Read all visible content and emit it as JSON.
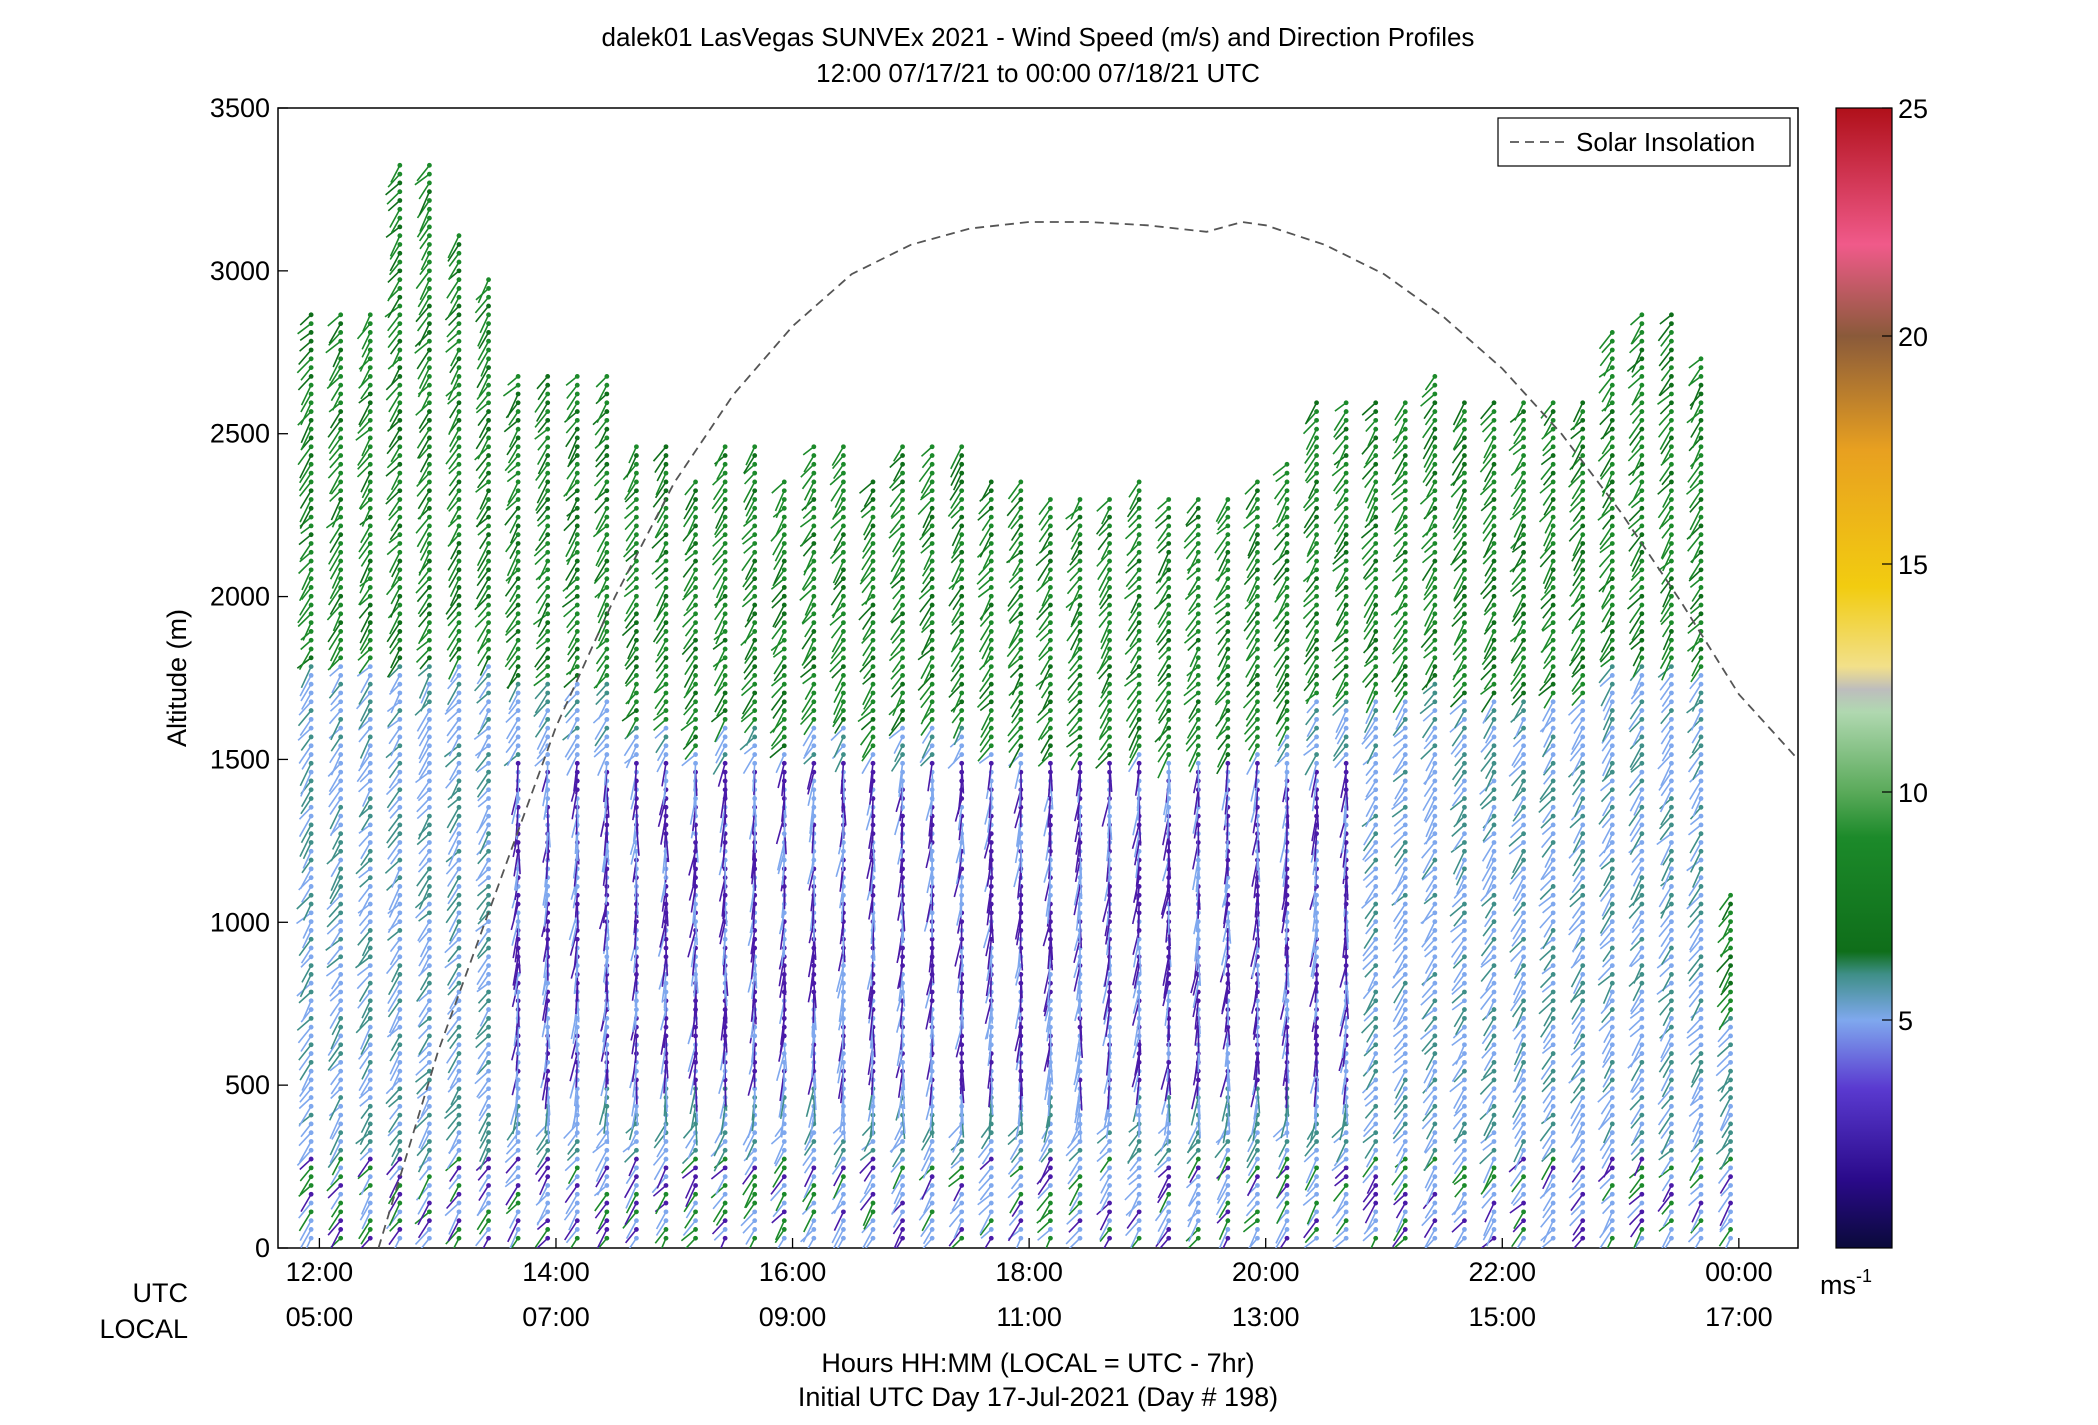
{
  "chart_data": {
    "type": "wind-barb-profile",
    "title": "dalek01 LasVegas SUNVEx 2021 - Wind Speed (m/s) and Direction Profiles",
    "subtitle": "12:00 07/17/21 to 00:00 07/18/21  UTC",
    "ylabel": "Altitude (m)",
    "ylim": [
      0,
      3500
    ],
    "yticks": [
      0,
      500,
      1000,
      1500,
      2000,
      2500,
      3000,
      3500
    ],
    "xlim_hours": [
      11.65,
      24.5
    ],
    "xticks": [
      {
        "hour": 12,
        "utc": "12:00",
        "local": "05:00"
      },
      {
        "hour": 14,
        "utc": "14:00",
        "local": "07:00"
      },
      {
        "hour": 16,
        "utc": "16:00",
        "local": "09:00"
      },
      {
        "hour": 18,
        "utc": "18:00",
        "local": "11:00"
      },
      {
        "hour": 20,
        "utc": "20:00",
        "local": "13:00"
      },
      {
        "hour": 22,
        "utc": "22:00",
        "local": "15:00"
      },
      {
        "hour": 24,
        "utc": "00:00",
        "local": "17:00"
      }
    ],
    "row_labels": {
      "utc": "UTC",
      "local": "LOCAL"
    },
    "xlabel": "Hours HH:MM  (LOCAL = UTC - 7hr)",
    "xlabel2": "Initial UTC Day 17-Jul-2021 (Day # 198)",
    "legend": {
      "label": "Solar Insolation",
      "position": "top-right"
    },
    "colorbar": {
      "min": 0,
      "max": 25,
      "ticks": [
        5,
        10,
        15,
        20,
        25
      ],
      "unit_base": "ms",
      "unit_exp": "-1"
    },
    "colors": {
      "purple": "#4a1aa8",
      "blue": "#7fa8ee",
      "teal": "#3f8f88",
      "green": "#1c8a2a",
      "dark_green": "#0f6e1a",
      "solar_line": "#555555"
    },
    "solar_insolation": [
      [
        12.5,
        0
      ],
      [
        13.0,
        600
      ],
      [
        13.5,
        1100
      ],
      [
        14.0,
        1600
      ],
      [
        14.5,
        2000
      ],
      [
        15.0,
        2350
      ],
      [
        15.5,
        2620
      ],
      [
        16.0,
        2830
      ],
      [
        16.5,
        2990
      ],
      [
        17.0,
        3080
      ],
      [
        17.5,
        3130
      ],
      [
        18.0,
        3150
      ],
      [
        18.5,
        3150
      ],
      [
        19.0,
        3140
      ],
      [
        19.5,
        3120
      ],
      [
        19.8,
        3150
      ],
      [
        20.0,
        3140
      ],
      [
        20.5,
        3080
      ],
      [
        21.0,
        2990
      ],
      [
        21.5,
        2860
      ],
      [
        22.0,
        2700
      ],
      [
        22.5,
        2500
      ],
      [
        23.0,
        2260
      ],
      [
        23.5,
        1990
      ],
      [
        24.0,
        1700
      ],
      [
        24.5,
        1500
      ]
    ],
    "profiles": [
      {
        "hour": 11.93,
        "top": 2880,
        "band": "green"
      },
      {
        "hour": 12.18,
        "top": 2880,
        "band": "green"
      },
      {
        "hour": 12.43,
        "top": 2880,
        "band": "green"
      },
      {
        "hour": 12.68,
        "top": 3330,
        "band": "green"
      },
      {
        "hour": 12.93,
        "top": 3330,
        "band": "green"
      },
      {
        "hour": 13.18,
        "top": 3120,
        "band": "green"
      },
      {
        "hour": 13.43,
        "top": 2980,
        "band": "green"
      },
      {
        "hour": 13.68,
        "top": 2680,
        "band": "green"
      },
      {
        "hour": 13.93,
        "top": 2680,
        "band": "green"
      },
      {
        "hour": 14.18,
        "top": 2680,
        "band": "green"
      },
      {
        "hour": 14.43,
        "top": 2680,
        "band": "green"
      },
      {
        "hour": 14.68,
        "top": 2460,
        "band": "green"
      },
      {
        "hour": 14.93,
        "top": 2460,
        "band": "green"
      },
      {
        "hour": 15.18,
        "top": 2370,
        "band": "green"
      },
      {
        "hour": 15.43,
        "top": 2460,
        "band": "green"
      },
      {
        "hour": 15.68,
        "top": 2460,
        "band": "green"
      },
      {
        "hour": 15.93,
        "top": 2370,
        "band": "green"
      },
      {
        "hour": 16.18,
        "top": 2460,
        "band": "green"
      },
      {
        "hour": 16.43,
        "top": 2460,
        "band": "green"
      },
      {
        "hour": 16.68,
        "top": 2370,
        "band": "green"
      },
      {
        "hour": 16.93,
        "top": 2460,
        "band": "green"
      },
      {
        "hour": 17.18,
        "top": 2460,
        "band": "green"
      },
      {
        "hour": 17.43,
        "top": 2460,
        "band": "green"
      },
      {
        "hour": 17.68,
        "top": 2370,
        "band": "green"
      },
      {
        "hour": 17.93,
        "top": 2370,
        "band": "green"
      },
      {
        "hour": 18.18,
        "top": 2320,
        "band": "green"
      },
      {
        "hour": 18.43,
        "top": 2320,
        "band": "green"
      },
      {
        "hour": 18.68,
        "top": 2320,
        "band": "green"
      },
      {
        "hour": 18.93,
        "top": 2370,
        "band": "green"
      },
      {
        "hour": 19.18,
        "top": 2320,
        "band": "green"
      },
      {
        "hour": 19.43,
        "top": 2320,
        "band": "green"
      },
      {
        "hour": 19.68,
        "top": 2320,
        "band": "green"
      },
      {
        "hour": 19.93,
        "top": 2370,
        "band": "green"
      },
      {
        "hour": 20.18,
        "top": 2420,
        "band": "green"
      },
      {
        "hour": 20.43,
        "top": 2600,
        "band": "green"
      },
      {
        "hour": 20.68,
        "top": 2600,
        "band": "green"
      },
      {
        "hour": 20.93,
        "top": 2600,
        "band": "green"
      },
      {
        "hour": 21.18,
        "top": 2600,
        "band": "green"
      },
      {
        "hour": 21.43,
        "top": 2680,
        "band": "green"
      },
      {
        "hour": 21.68,
        "top": 2600,
        "band": "green"
      },
      {
        "hour": 21.93,
        "top": 2600,
        "band": "green"
      },
      {
        "hour": 22.18,
        "top": 2600,
        "band": "green"
      },
      {
        "hour": 22.43,
        "top": 2600,
        "band": "green"
      },
      {
        "hour": 22.68,
        "top": 2600,
        "band": "green"
      },
      {
        "hour": 22.93,
        "top": 2820,
        "band": "green"
      },
      {
        "hour": 23.18,
        "top": 2880,
        "band": "green"
      },
      {
        "hour": 23.43,
        "top": 2880,
        "band": "green"
      },
      {
        "hour": 23.68,
        "top": 2730,
        "band": "green"
      },
      {
        "hour": 23.93,
        "top": 1090,
        "band": "green"
      }
    ]
  }
}
